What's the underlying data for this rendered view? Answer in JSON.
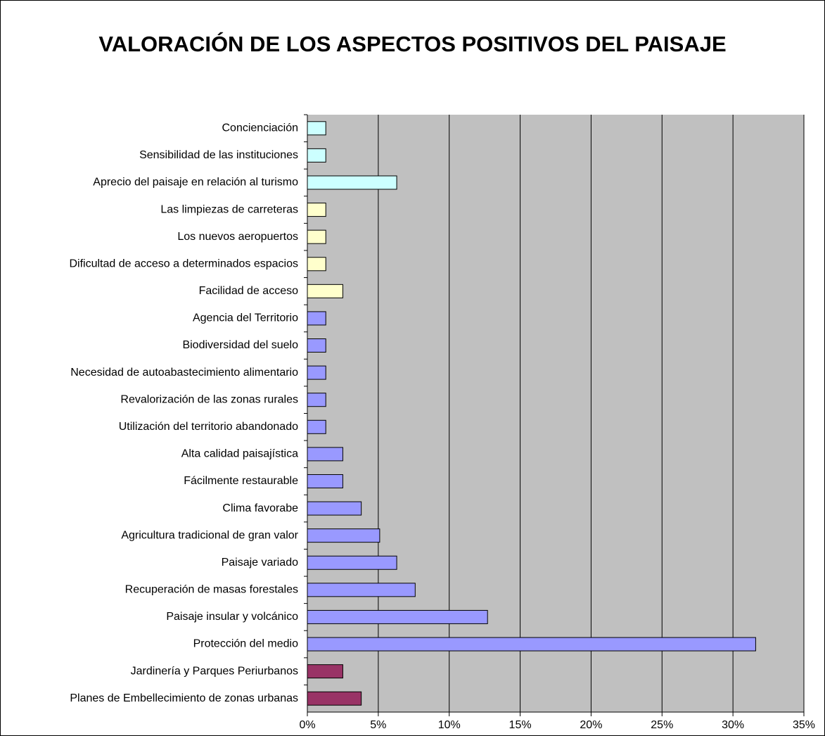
{
  "chart_data": {
    "type": "barh",
    "title": "VALORACIÓN DE LOS ASPECTOS POSITIVOS DEL PAISAJE",
    "categories": [
      "Concienciación",
      "Sensibilidad de las instituciones",
      "Aprecio del paisaje en relación al turismo",
      "Las limpiezas de carreteras",
      "Los nuevos aeropuertos",
      "Dificultad de acceso a determinados espacios",
      "Facilidad de acceso",
      "Agencia del Territorio",
      "Biodiversidad del suelo",
      "Necesidad de autoabastecimiento alimentario",
      "Revalorización de las zonas rurales",
      "Utilización del territorio abandonado",
      "Alta calidad paisajística",
      "Fácilmente restaurable",
      "Clima favorabe",
      "Agricultura tradicional de gran valor",
      "Paisaje variado",
      "Recuperación de masas forestales",
      "Paisaje insular y volcánico",
      "Protección del medio",
      "Jardinería y Parques Periurbanos",
      "Planes de Embellecimiento de zonas urbanas"
    ],
    "values": [
      1.3,
      1.3,
      6.3,
      1.3,
      1.3,
      1.3,
      2.5,
      1.3,
      1.3,
      1.3,
      1.3,
      1.3,
      2.5,
      2.5,
      3.8,
      5.1,
      6.3,
      7.6,
      12.7,
      31.6,
      2.5,
      3.8
    ],
    "colors": [
      "#ccffff",
      "#ccffff",
      "#ccffff",
      "#ffffcc",
      "#ffffcc",
      "#ffffcc",
      "#ffffcc",
      "#9999ff",
      "#9999ff",
      "#9999ff",
      "#9999ff",
      "#9999ff",
      "#9999ff",
      "#9999ff",
      "#9999ff",
      "#9999ff",
      "#9999ff",
      "#9999ff",
      "#9999ff",
      "#9999ff",
      "#993366",
      "#993366"
    ],
    "xlim": [
      0,
      35
    ],
    "xticks": [
      {
        "value": 0,
        "label": "0%"
      },
      {
        "value": 5,
        "label": "5%"
      },
      {
        "value": 10,
        "label": "10%"
      },
      {
        "value": 15,
        "label": "15%"
      },
      {
        "value": 20,
        "label": "20%"
      },
      {
        "value": 25,
        "label": "25%"
      },
      {
        "value": 30,
        "label": "30%"
      },
      {
        "value": 35,
        "label": "35%"
      }
    ],
    "grid": true,
    "plot_background": "#c0c0c0"
  }
}
